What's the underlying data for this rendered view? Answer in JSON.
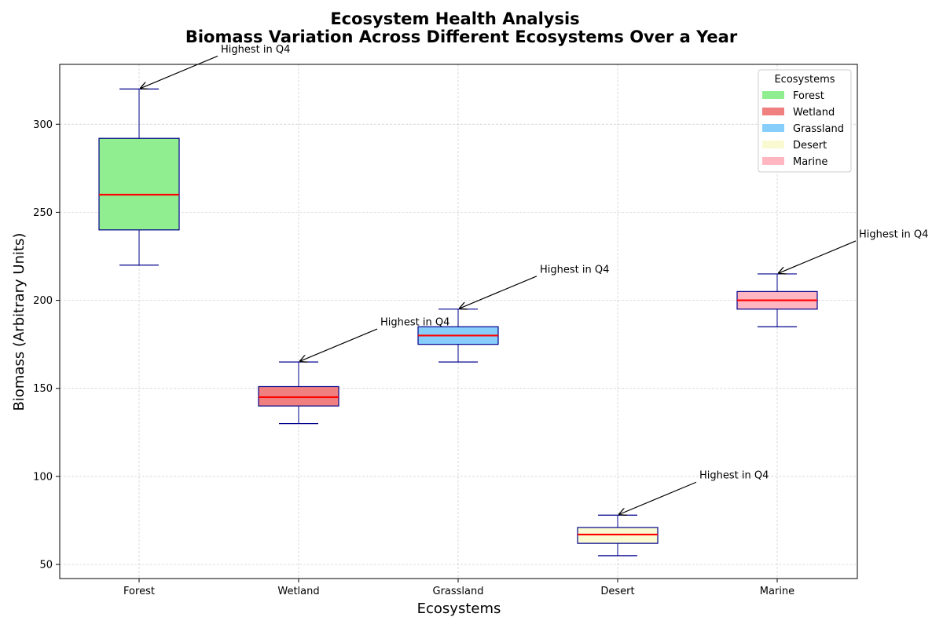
{
  "chart_data": {
    "type": "box",
    "title": "Ecosystem Health Analysis",
    "subtitle": "Biomass Variation Across Different Ecosystems Over a Year",
    "xlabel": "Ecosystems",
    "ylabel": "Biomass (Arbitrary Units)",
    "ylim": [
      42,
      334
    ],
    "yticks": [
      50,
      100,
      150,
      200,
      250,
      300
    ],
    "grid": true,
    "legend": {
      "title": "Ecosystems",
      "placement": "top-right"
    },
    "annotation_text": "Highest in Q4",
    "series": [
      {
        "name": "Forest",
        "whisker_low": 220,
        "q1": 240,
        "median": 260,
        "q3": 292,
        "whisker_high": 320,
        "color": "#90ee90"
      },
      {
        "name": "Wetland",
        "whisker_low": 130,
        "q1": 140,
        "median": 145,
        "q3": 151,
        "whisker_high": 165,
        "color": "#f08080"
      },
      {
        "name": "Grassland",
        "whisker_low": 165,
        "q1": 175,
        "median": 180,
        "q3": 185,
        "whisker_high": 195,
        "color": "#87cefa"
      },
      {
        "name": "Desert",
        "whisker_low": 55,
        "q1": 62,
        "median": 67,
        "q3": 71,
        "whisker_high": 78,
        "color": "#fafad2"
      },
      {
        "name": "Marine",
        "whisker_low": 185,
        "q1": 195,
        "median": 200,
        "q3": 205,
        "whisker_high": 215,
        "color": "#ffb6c1"
      }
    ],
    "colors": {
      "box_edge": "#00008b",
      "median": "#ff0000",
      "grid": "#cccccc"
    }
  }
}
